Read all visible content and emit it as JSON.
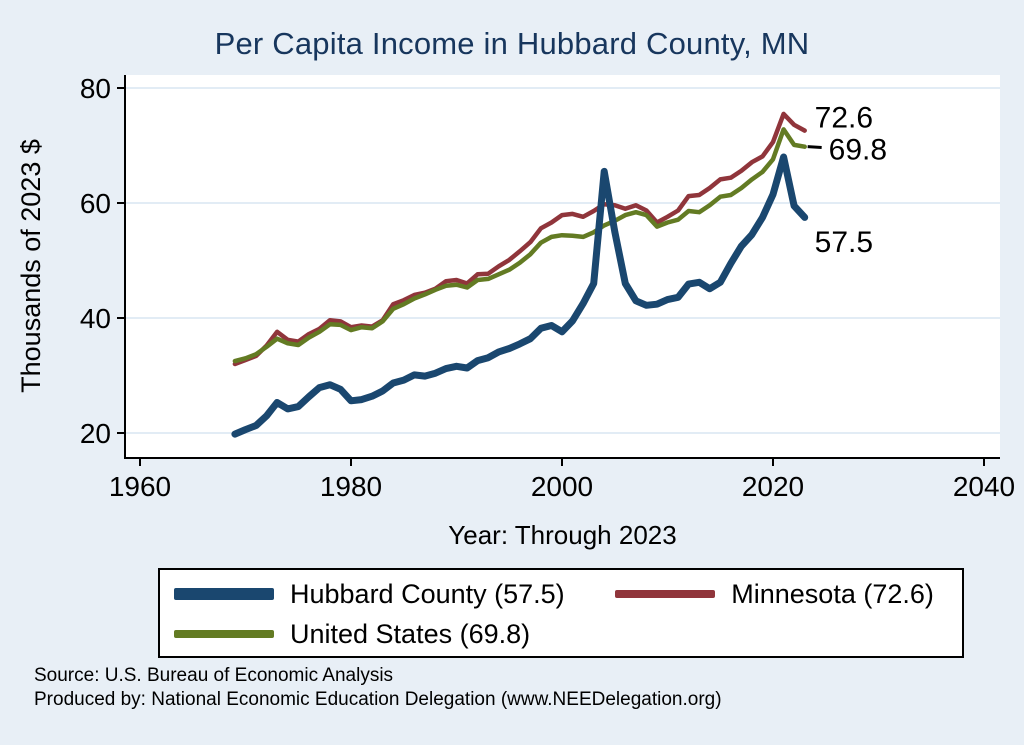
{
  "title": "Per Capita Income in Hubbard County, MN",
  "axes": {
    "y_label": "Thousands of 2023 $",
    "x_label": "Year: Through 2023",
    "x_ticks": [
      1960,
      1980,
      2000,
      2020,
      2040
    ],
    "y_ticks": [
      20,
      40,
      60,
      80
    ]
  },
  "colors": {
    "background": "#e8eff6",
    "plot_background": "#ffffff",
    "gridline": "#d9e6f2",
    "axis": "#000000",
    "title": "#17365d",
    "hubbard": "#1a476f",
    "minnesota": "#90353b",
    "united_states": "#637b23"
  },
  "chart_data": {
    "type": "line",
    "title": "Per Capita Income in Hubbard County, MN",
    "xlabel": "Year: Through 2023",
    "ylabel": "Thousands of 2023 $",
    "xlim": [
      1958,
      2042
    ],
    "ylim": [
      15.5,
      82.5
    ],
    "grid": true,
    "legend_position": "bottom",
    "x": [
      1969,
      1970,
      1971,
      1972,
      1973,
      1974,
      1975,
      1976,
      1977,
      1978,
      1979,
      1980,
      1981,
      1982,
      1983,
      1984,
      1985,
      1986,
      1987,
      1988,
      1989,
      1990,
      1991,
      1992,
      1993,
      1994,
      1995,
      1996,
      1997,
      1998,
      1999,
      2000,
      2001,
      2002,
      2003,
      2004,
      2005,
      2006,
      2007,
      2008,
      2009,
      2010,
      2011,
      2012,
      2013,
      2014,
      2015,
      2016,
      2017,
      2018,
      2019,
      2020,
      2021,
      2022,
      2023
    ],
    "series": [
      {
        "name": "Minnesota",
        "color": "#90353b",
        "width": 4.5,
        "end_value": 72.6,
        "values": [
          32.0,
          32.7,
          33.4,
          35.2,
          37.6,
          36.2,
          35.9,
          37.2,
          38.1,
          39.6,
          39.4,
          38.4,
          38.7,
          38.5,
          39.6,
          42.4,
          43.1,
          44.0,
          44.4,
          45.1,
          46.4,
          46.6,
          46.0,
          47.6,
          47.7,
          49.0,
          50.1,
          51.6,
          53.2,
          55.6,
          56.6,
          57.9,
          58.1,
          57.6,
          58.6,
          59.8,
          59.6,
          59.0,
          59.6,
          58.7,
          56.6,
          57.6,
          58.7,
          61.2,
          61.4,
          62.6,
          64.1,
          64.4,
          65.6,
          67.1,
          68.1,
          70.6,
          75.5,
          73.6,
          72.6
        ]
      },
      {
        "name": "United States",
        "color": "#637b23",
        "width": 4.5,
        "end_value": 69.8,
        "values": [
          32.5,
          33.0,
          33.7,
          35.0,
          36.4,
          35.6,
          35.3,
          36.6,
          37.6,
          38.9,
          38.8,
          37.9,
          38.4,
          38.2,
          39.4,
          41.6,
          42.4,
          43.4,
          44.1,
          44.9,
          45.6,
          45.8,
          45.3,
          46.6,
          46.8,
          47.6,
          48.4,
          49.6,
          51.1,
          53.1,
          54.1,
          54.4,
          54.3,
          54.1,
          54.9,
          56.1,
          56.9,
          57.9,
          58.4,
          57.9,
          55.9,
          56.6,
          57.1,
          58.6,
          58.4,
          59.6,
          61.1,
          61.4,
          62.6,
          64.1,
          65.4,
          67.6,
          72.8,
          70.1,
          69.8
        ]
      },
      {
        "name": "Hubbard County",
        "color": "#1a476f",
        "width": 7,
        "end_value": 57.5,
        "values": [
          19.8,
          20.6,
          21.3,
          23.0,
          25.3,
          24.2,
          24.6,
          26.3,
          27.9,
          28.4,
          27.6,
          25.6,
          25.8,
          26.4,
          27.3,
          28.7,
          29.2,
          30.1,
          29.9,
          30.4,
          31.2,
          31.6,
          31.3,
          32.6,
          33.1,
          34.1,
          34.7,
          35.5,
          36.4,
          38.2,
          38.7,
          37.6,
          39.5,
          42.5,
          46.0,
          65.5,
          55.0,
          46.0,
          43.0,
          42.2,
          42.4,
          43.2,
          43.6,
          45.9,
          46.2,
          45.1,
          46.2,
          49.5,
          52.5,
          54.5,
          57.5,
          61.5,
          68.0,
          59.5,
          57.5
        ]
      }
    ],
    "annotations": [
      {
        "text": "72.6",
        "value": 74.9,
        "leader": false
      },
      {
        "text": "69.8",
        "value": 69.3,
        "leader": true
      },
      {
        "text": "57.5",
        "value": 53.2,
        "leader": false
      }
    ]
  },
  "legend": {
    "items": [
      {
        "label": "Hubbard County (57.5)",
        "color": "#1a476f",
        "swatch_height": 12
      },
      {
        "label": "Minnesota (72.6)",
        "color": "#90353b",
        "swatch_height": 8
      },
      {
        "label": "United States (69.8)",
        "color": "#637b23",
        "swatch_height": 8
      }
    ]
  },
  "footer": {
    "line1": "Source: U.S. Bureau of Economic Analysis",
    "line2": "Produced by: National Economic Education Delegation (www.NEEDelegation.org)"
  }
}
